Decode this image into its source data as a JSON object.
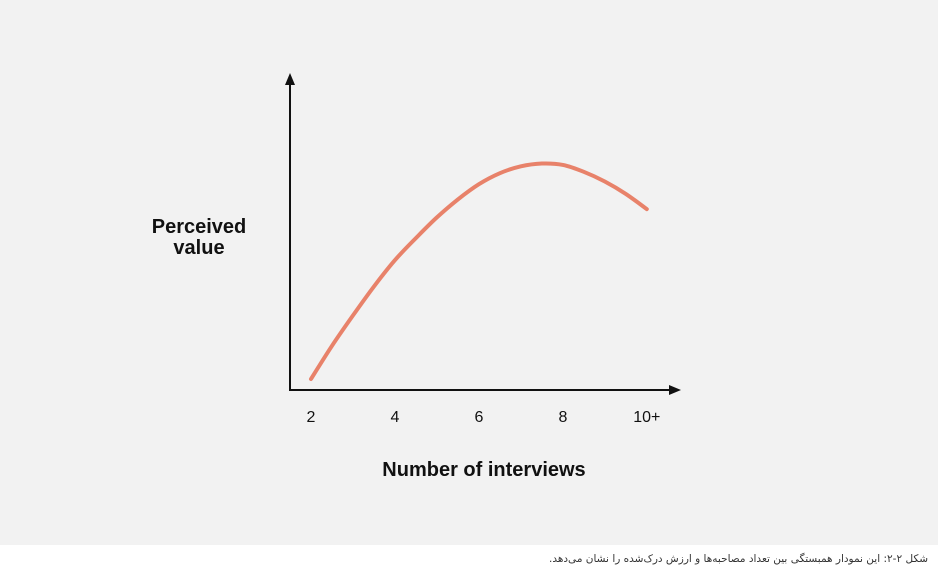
{
  "chart_data": {
    "type": "line",
    "xlabel": "Number of interviews",
    "ylabel_lines": [
      "Perceived",
      "value"
    ],
    "categories": [
      "2",
      "4",
      "6",
      "8",
      "10+"
    ],
    "x": [
      2,
      2.5,
      3,
      3.5,
      4,
      4.5,
      5,
      5.5,
      6,
      6.5,
      7,
      7.5,
      8,
      8.5,
      9,
      9.5,
      10
    ],
    "values": [
      0.04,
      0.16,
      0.27,
      0.375,
      0.47,
      0.55,
      0.625,
      0.69,
      0.745,
      0.785,
      0.81,
      0.82,
      0.815,
      0.79,
      0.755,
      0.71,
      0.655
    ],
    "xlim": [
      1.5,
      10.6
    ],
    "ylim": [
      0,
      1.05
    ],
    "grid": false,
    "line_color": "#e8826a",
    "axis_color": "#111111"
  },
  "caption": "شکل ۲-۲: این نمودار همبستگی بین تعداد مصاحبه‌ها و ارزش درک‌شده را نشان می‌دهد."
}
